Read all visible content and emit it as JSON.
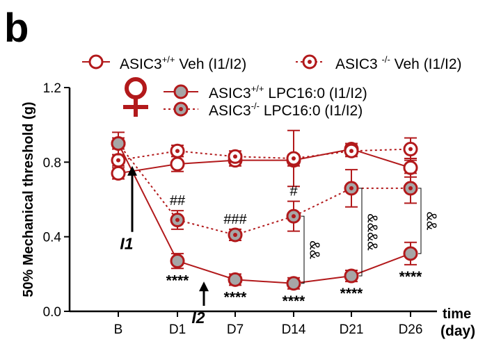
{
  "panel_letter": "b",
  "colors": {
    "series": "#b2191b",
    "filled_marker": "#a6a6a6",
    "axis": "#000000"
  },
  "sex_symbol": "♀",
  "chart_data": {
    "type": "line",
    "ylabel": "50% Mechanical threshold (g)",
    "xlabel": "time",
    "xunit": "(day)",
    "categories": [
      "B",
      "D1",
      "D7",
      "D14",
      "D21",
      "D26"
    ],
    "yticks": [
      "0.0",
      "0.4",
      "0.8",
      "1.2"
    ],
    "ylim": [
      0,
      1.2
    ],
    "grid": false,
    "legend_position": "top",
    "series": [
      {
        "name_pre": "ASIC3",
        "name_sup": "+/+",
        "name_post": " Veh (I1/I2)",
        "line": "solid",
        "marker": "open",
        "values": [
          0.74,
          0.79,
          0.81,
          0.81,
          0.87,
          0.77
        ],
        "errors": [
          0.03,
          0.04,
          0.03,
          0.03,
          0.03,
          0.05
        ]
      },
      {
        "name_pre": "ASIC3 ",
        "name_sup": "-/-",
        "name_post": " Veh (I1/I2)",
        "line": "dotted",
        "marker": "open-dot",
        "values": [
          0.81,
          0.86,
          0.83,
          0.82,
          0.86,
          0.87
        ],
        "errors": [
          0.03,
          0.03,
          0.03,
          0.15,
          0.03,
          0.06
        ]
      },
      {
        "name_pre": "ASIC3",
        "name_sup": "+/+",
        "name_post": " LPC16:0 (I1/I2)",
        "line": "solid",
        "marker": "filled",
        "values": [
          0.9,
          0.27,
          0.17,
          0.15,
          0.19,
          0.31
        ],
        "errors": [
          0.06,
          0.04,
          0.03,
          0.03,
          0.03,
          0.06
        ]
      },
      {
        "name_pre": "ASIC3",
        "name_sup": "-/-",
        "name_post": " LPC16:0 (I1/I2)",
        "line": "dotted",
        "marker": "filled-dot",
        "values": [
          0.9,
          0.49,
          0.41,
          0.51,
          0.66,
          0.66
        ],
        "errors": [
          0.03,
          0.05,
          0.03,
          0.08,
          0.1,
          0.08
        ]
      }
    ],
    "annotations": {
      "stars": [
        {
          "category": "D1",
          "text": "****"
        },
        {
          "category": "D7",
          "text": "****"
        },
        {
          "category": "D14",
          "text": "****"
        },
        {
          "category": "D21",
          "text": "****"
        },
        {
          "category": "D26",
          "text": "****"
        }
      ],
      "hashes": [
        {
          "category": "D1",
          "text": "##"
        },
        {
          "category": "D7",
          "text": "###"
        },
        {
          "category": "D14",
          "text": "#"
        }
      ],
      "ampersands": [
        {
          "category": "D14",
          "text": "&&"
        },
        {
          "category": "D21",
          "text": "&&&&"
        },
        {
          "category": "D26",
          "text": "&&"
        }
      ],
      "arrows": [
        {
          "label": "I1",
          "value": 0.78
        },
        {
          "label": "I2",
          "value": 0.16
        }
      ]
    }
  }
}
